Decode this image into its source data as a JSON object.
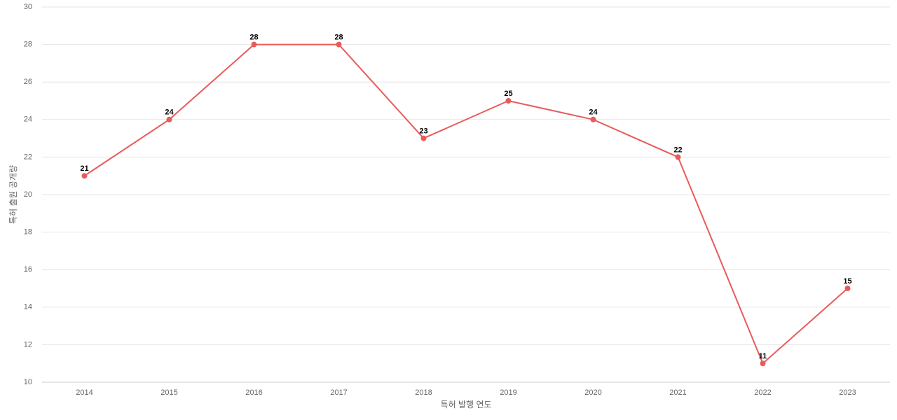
{
  "chart_data": {
    "type": "line",
    "categories": [
      "2014",
      "2015",
      "2016",
      "2017",
      "2018",
      "2019",
      "2020",
      "2021",
      "2022",
      "2023"
    ],
    "series": [
      {
        "name": "특허 출원 공개량",
        "color": "#e85b5b",
        "values": [
          21,
          24,
          28,
          28,
          23,
          25,
          24,
          22,
          11,
          15
        ]
      }
    ],
    "x_label": "특허 발행 연도",
    "y_label": "특허 출원 공개량",
    "ylim": [
      10,
      30
    ],
    "yticks": [
      10,
      12,
      14,
      16,
      18,
      20,
      22,
      24,
      26,
      28,
      30
    ],
    "grid": true
  }
}
